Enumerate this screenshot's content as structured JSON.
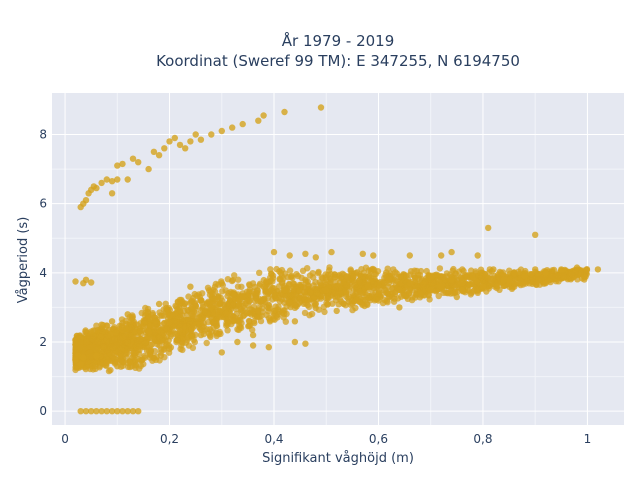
{
  "chart_data": {
    "type": "scatter",
    "title_line1": "År 1979 - 2019",
    "title_line2": "Koordinat (Sweref 99 TM): E 347255, N 6194750",
    "xlabel": "Signifikant våghöjd (m)",
    "ylabel": "Vågperiod (s)",
    "xlim": [
      -0.025,
      1.07
    ],
    "ylim": [
      -0.4,
      9.2
    ],
    "x_ticks": [
      0,
      0.2,
      0.4,
      0.6,
      0.8,
      1
    ],
    "x_tick_labels": [
      "0",
      "0,2",
      "0,4",
      "0,6",
      "0,8",
      "1"
    ],
    "y_ticks": [
      0,
      2,
      4,
      6,
      8
    ],
    "y_tick_labels": [
      "0",
      "2",
      "4",
      "6",
      "8"
    ],
    "grid": true,
    "marker_color": "#D4A21E",
    "plot_bg": "#E5E8F1",
    "series": [
      {
        "points": [
          [
            0.02,
            3.75
          ],
          [
            0.035,
            3.7
          ],
          [
            0.04,
            3.8
          ],
          [
            0.05,
            3.72
          ],
          [
            0.025,
            1.6
          ],
          [
            0.03,
            1.35
          ],
          [
            0.02,
            1.5
          ],
          [
            0.035,
            1.55
          ],
          [
            0.03,
            0.0
          ],
          [
            0.04,
            0.0
          ],
          [
            0.05,
            0.0
          ],
          [
            0.06,
            0.0
          ],
          [
            0.07,
            0.0
          ],
          [
            0.08,
            0.0
          ],
          [
            0.09,
            0.0
          ],
          [
            0.1,
            0.0
          ],
          [
            0.11,
            0.0
          ],
          [
            0.12,
            0.0
          ],
          [
            0.13,
            0.0
          ],
          [
            0.14,
            0.0
          ],
          [
            0.03,
            5.9
          ],
          [
            0.035,
            6.0
          ],
          [
            0.04,
            6.1
          ],
          [
            0.045,
            6.3
          ],
          [
            0.05,
            6.4
          ],
          [
            0.055,
            6.5
          ],
          [
            0.06,
            6.45
          ],
          [
            0.07,
            6.6
          ],
          [
            0.08,
            6.7
          ],
          [
            0.09,
            6.65
          ],
          [
            0.1,
            6.7
          ],
          [
            0.09,
            6.3
          ],
          [
            0.1,
            7.1
          ],
          [
            0.11,
            7.15
          ],
          [
            0.12,
            6.7
          ],
          [
            0.13,
            7.3
          ],
          [
            0.14,
            7.2
          ],
          [
            0.16,
            7.0
          ],
          [
            0.17,
            7.5
          ],
          [
            0.18,
            7.4
          ],
          [
            0.19,
            7.6
          ],
          [
            0.2,
            7.8
          ],
          [
            0.21,
            7.9
          ],
          [
            0.22,
            7.7
          ],
          [
            0.23,
            7.6
          ],
          [
            0.24,
            7.8
          ],
          [
            0.25,
            8.0
          ],
          [
            0.26,
            7.85
          ],
          [
            0.28,
            8.0
          ],
          [
            0.3,
            8.1
          ],
          [
            0.32,
            8.2
          ],
          [
            0.34,
            8.3
          ],
          [
            0.37,
            8.4
          ],
          [
            0.38,
            8.55
          ],
          [
            0.42,
            8.65
          ],
          [
            0.49,
            8.78
          ],
          [
            0.05,
            2.3
          ],
          [
            0.06,
            1.6
          ],
          [
            0.07,
            2.5
          ],
          [
            0.08,
            1.4
          ],
          [
            0.09,
            2.6
          ],
          [
            0.1,
            1.3
          ],
          [
            0.12,
            2.8
          ],
          [
            0.14,
            1.5
          ],
          [
            0.16,
            2.3
          ],
          [
            0.18,
            3.1
          ],
          [
            0.2,
            1.8
          ],
          [
            0.22,
            2.9
          ],
          [
            0.24,
            3.6
          ],
          [
            0.26,
            2.2
          ],
          [
            0.28,
            3.0
          ],
          [
            0.3,
            3.7
          ],
          [
            0.32,
            2.6
          ],
          [
            0.34,
            3.3
          ],
          [
            0.36,
            2.2
          ],
          [
            0.38,
            3.6
          ],
          [
            0.4,
            2.9
          ],
          [
            0.42,
            3.5
          ],
          [
            0.44,
            2.6
          ],
          [
            0.46,
            3.8
          ],
          [
            0.48,
            3.1
          ],
          [
            0.5,
            3.5
          ],
          [
            0.52,
            2.9
          ],
          [
            0.54,
            3.9
          ],
          [
            0.56,
            3.2
          ],
          [
            0.58,
            3.6
          ],
          [
            0.6,
            3.4
          ],
          [
            0.62,
            3.8
          ],
          [
            0.64,
            3.5
          ],
          [
            0.66,
            3.7
          ],
          [
            0.68,
            3.4
          ],
          [
            0.7,
            3.9
          ],
          [
            0.72,
            3.6
          ],
          [
            0.74,
            3.8
          ],
          [
            0.76,
            3.7
          ],
          [
            0.78,
            3.9
          ],
          [
            0.8,
            3.6
          ],
          [
            0.82,
            4.1
          ],
          [
            0.84,
            3.8
          ],
          [
            0.86,
            4.0
          ],
          [
            0.88,
            3.9
          ],
          [
            0.9,
            4.1
          ],
          [
            0.92,
            4.0
          ],
          [
            0.95,
            4.1
          ],
          [
            0.98,
            4.15
          ],
          [
            1.02,
            4.1
          ],
          [
            0.4,
            4.6
          ],
          [
            0.43,
            4.5
          ],
          [
            0.46,
            4.55
          ],
          [
            0.48,
            4.45
          ],
          [
            0.51,
            4.6
          ],
          [
            0.57,
            4.55
          ],
          [
            0.59,
            4.5
          ],
          [
            0.66,
            4.5
          ],
          [
            0.72,
            4.5
          ],
          [
            0.74,
            4.6
          ],
          [
            0.79,
            4.5
          ],
          [
            0.81,
            5.3
          ],
          [
            0.9,
            5.1
          ],
          [
            0.3,
            1.7
          ],
          [
            0.33,
            2.0
          ],
          [
            0.36,
            1.9
          ],
          [
            0.39,
            1.85
          ],
          [
            0.44,
            2.0
          ],
          [
            0.46,
            1.95
          ],
          [
            0.6,
            3.2
          ],
          [
            0.64,
            3.0
          ],
          [
            0.7,
            3.5
          ],
          [
            0.75,
            3.3
          ],
          [
            0.76,
            3.5
          ],
          [
            0.85,
            3.8
          ],
          [
            0.92,
            3.7
          ]
        ]
      }
    ],
    "cloud_bands": {
      "x_min": 0.02,
      "x_max": 1.0,
      "lower_envelope": [
        [
          0.02,
          1.15
        ],
        [
          0.1,
          1.1
        ],
        [
          0.15,
          1.15
        ],
        [
          0.2,
          1.5
        ],
        [
          0.3,
          2.0
        ],
        [
          0.4,
          2.5
        ],
        [
          0.5,
          2.8
        ],
        [
          0.6,
          3.0
        ],
        [
          0.7,
          3.2
        ],
        [
          0.8,
          3.4
        ],
        [
          0.9,
          3.6
        ],
        [
          1.0,
          3.8
        ]
      ],
      "upper_envelope": [
        [
          0.02,
          2.3
        ],
        [
          0.1,
          2.7
        ],
        [
          0.15,
          3.0
        ],
        [
          0.2,
          3.3
        ],
        [
          0.3,
          3.9
        ],
        [
          0.4,
          4.2
        ],
        [
          0.5,
          4.2
        ],
        [
          0.6,
          4.2
        ],
        [
          0.7,
          4.15
        ],
        [
          0.8,
          4.15
        ],
        [
          0.9,
          4.1
        ],
        [
          1.0,
          4.15
        ]
      ]
    }
  }
}
